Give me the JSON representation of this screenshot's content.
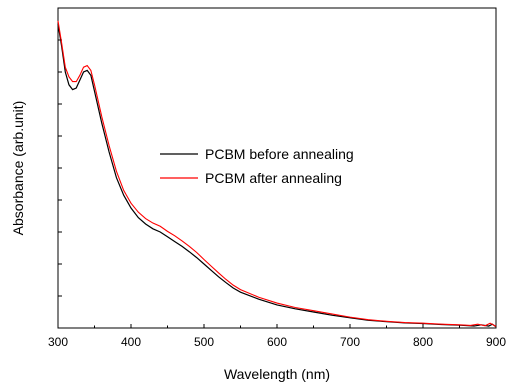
{
  "chart_data": {
    "type": "line",
    "title": "",
    "xlabel": "Wavelength (nm)",
    "ylabel": "Absorbance (arb.unit)",
    "xlim": [
      300,
      900
    ],
    "ylim": [
      0,
      1.0
    ],
    "x_ticks": [
      300,
      400,
      500,
      600,
      700,
      800,
      900
    ],
    "y_tick_labels_visible": false,
    "grid": false,
    "legend_position": "center",
    "series": [
      {
        "name": "PCBM before annealing",
        "color": "#000000",
        "points": [
          [
            300,
            0.95
          ],
          [
            305,
            0.88
          ],
          [
            310,
            0.8
          ],
          [
            315,
            0.76
          ],
          [
            320,
            0.745
          ],
          [
            325,
            0.75
          ],
          [
            330,
            0.775
          ],
          [
            335,
            0.8
          ],
          [
            340,
            0.805
          ],
          [
            345,
            0.79
          ],
          [
            350,
            0.74
          ],
          [
            360,
            0.64
          ],
          [
            370,
            0.55
          ],
          [
            380,
            0.47
          ],
          [
            390,
            0.415
          ],
          [
            400,
            0.375
          ],
          [
            410,
            0.345
          ],
          [
            420,
            0.325
          ],
          [
            430,
            0.31
          ],
          [
            440,
            0.3
          ],
          [
            450,
            0.285
          ],
          [
            460,
            0.27
          ],
          [
            470,
            0.255
          ],
          [
            480,
            0.238
          ],
          [
            490,
            0.22
          ],
          [
            500,
            0.2
          ],
          [
            510,
            0.18
          ],
          [
            520,
            0.16
          ],
          [
            530,
            0.142
          ],
          [
            540,
            0.125
          ],
          [
            550,
            0.112
          ],
          [
            575,
            0.09
          ],
          [
            600,
            0.072
          ],
          [
            625,
            0.06
          ],
          [
            650,
            0.05
          ],
          [
            675,
            0.04
          ],
          [
            700,
            0.032
          ],
          [
            725,
            0.024
          ],
          [
            750,
            0.02
          ],
          [
            775,
            0.016
          ],
          [
            800,
            0.014
          ],
          [
            825,
            0.011
          ],
          [
            850,
            0.009
          ],
          [
            870,
            0.006
          ],
          [
            880,
            0.01
          ],
          [
            890,
            0.006
          ],
          [
            895,
            0.012
          ],
          [
            900,
            0.004
          ]
        ]
      },
      {
        "name": "PCBM after annealing",
        "color": "#ff0000",
        "points": [
          [
            300,
            0.96
          ],
          [
            305,
            0.89
          ],
          [
            310,
            0.815
          ],
          [
            315,
            0.785
          ],
          [
            320,
            0.77
          ],
          [
            325,
            0.77
          ],
          [
            330,
            0.79
          ],
          [
            335,
            0.815
          ],
          [
            340,
            0.82
          ],
          [
            345,
            0.805
          ],
          [
            350,
            0.76
          ],
          [
            360,
            0.66
          ],
          [
            370,
            0.57
          ],
          [
            380,
            0.49
          ],
          [
            390,
            0.43
          ],
          [
            400,
            0.39
          ],
          [
            410,
            0.362
          ],
          [
            420,
            0.342
          ],
          [
            430,
            0.328
          ],
          [
            440,
            0.318
          ],
          [
            450,
            0.302
          ],
          [
            460,
            0.288
          ],
          [
            470,
            0.272
          ],
          [
            480,
            0.255
          ],
          [
            490,
            0.236
          ],
          [
            500,
            0.214
          ],
          [
            510,
            0.193
          ],
          [
            520,
            0.172
          ],
          [
            530,
            0.152
          ],
          [
            540,
            0.134
          ],
          [
            550,
            0.12
          ],
          [
            575,
            0.096
          ],
          [
            600,
            0.078
          ],
          [
            625,
            0.064
          ],
          [
            650,
            0.054
          ],
          [
            675,
            0.044
          ],
          [
            700,
            0.034
          ],
          [
            725,
            0.026
          ],
          [
            750,
            0.021
          ],
          [
            775,
            0.017
          ],
          [
            800,
            0.015
          ],
          [
            825,
            0.012
          ],
          [
            850,
            0.01
          ],
          [
            865,
            0.008
          ],
          [
            875,
            0.012
          ],
          [
            885,
            0.007
          ],
          [
            892,
            0.015
          ],
          [
            900,
            0.005
          ]
        ]
      }
    ]
  }
}
